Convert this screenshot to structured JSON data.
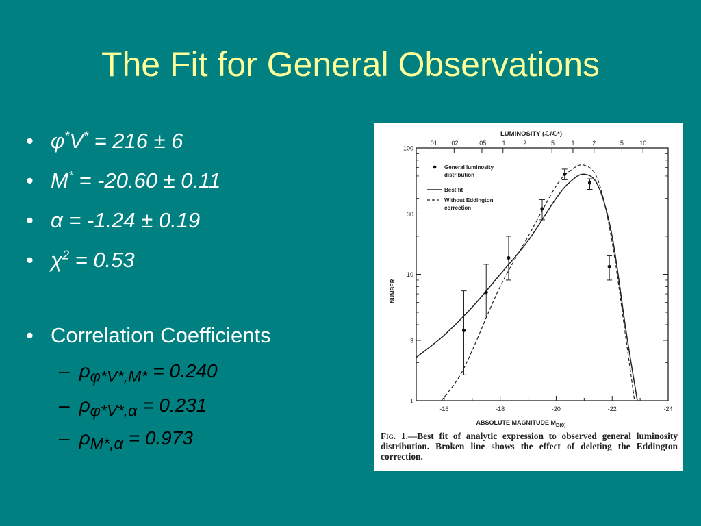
{
  "slide": {
    "title": "The Fit for General Observations"
  },
  "bullets": {
    "b1_base": "φ",
    "b1_sup1": "*",
    "b1_mid": "V",
    "b1_sup2": "*",
    "b1_rest": " = 216 ± 6",
    "b2_base": "M",
    "b2_sup": "*",
    "b2_rest": " = -20.60 ± 0.11",
    "b3": "α = -1.24 ± 0.19",
    "b4_base": "χ",
    "b4_sup": "2",
    "b4_rest": " = 0.53",
    "b5": "Correlation Coefficients",
    "sub": [
      {
        "sym": "ρ",
        "subscript": "φ*V*,M*",
        "value": " = 0.240"
      },
      {
        "sym": "ρ",
        "subscript": "φ*V*,α",
        "value": " = 0.231"
      },
      {
        "sym": "ρ",
        "subscript": "M*,α",
        "value": " = 0.973"
      }
    ],
    "bullet_char": "•",
    "dash_char": "–"
  },
  "figure": {
    "top_axis_label": "LUMINOSITY (ℒ/ℒ*)",
    "top_ticks": [
      ".01",
      ".02",
      ".05",
      ".1",
      ".2",
      ".5",
      "1",
      "2",
      "5",
      "10"
    ],
    "y_label": "NUMBER",
    "y_ticks": [
      "100",
      "30",
      "10",
      "3",
      "1"
    ],
    "x_ticks": [
      "-16",
      "-18",
      "-20",
      "-22",
      "-24"
    ],
    "x_label": "ABSOLUTE MAGNITUDE M",
    "x_label_sub": "B(0)",
    "legend": {
      "points": "General luminosity distribution",
      "points_l1": "General luminosity",
      "points_l2": "distribution",
      "best": "Best fit",
      "dashed_l1": "Without Eddington",
      "dashed_l2": "correction"
    },
    "caption_fig": "Fig. 1.",
    "caption_text": "—Best fit of analytic expression to observed general luminosity distribution. Broken line shows the effect of deleting the Eddington correction."
  },
  "chart_data": {
    "type": "scatter",
    "title": "",
    "xlabel": "ABSOLUTE MAGNITUDE M B(0)",
    "ylabel": "NUMBER",
    "xlim": [
      -15,
      -24
    ],
    "ylim": [
      1,
      100
    ],
    "y_scale": "log",
    "x_ticks": [
      -16,
      -18,
      -20,
      -22,
      -24
    ],
    "y_ticks": [
      1,
      3,
      10,
      30,
      100
    ],
    "top_axis": {
      "label": "LUMINOSITY (ℒ/ℒ*)",
      "ticks": [
        0.01,
        0.02,
        0.05,
        0.1,
        0.2,
        0.5,
        1,
        2,
        5,
        10
      ]
    },
    "series": [
      {
        "name": "General luminosity distribution",
        "kind": "points",
        "x": [
          -16.7,
          -17.5,
          -18.3,
          -19.5,
          -20.3,
          -21.2,
          -21.9
        ],
        "y": [
          3.6,
          7.2,
          13.5,
          33,
          62,
          53,
          11.5
        ],
        "err_low": [
          1.6,
          4.5,
          9,
          27,
          56,
          47,
          9
        ],
        "err_high": [
          7.4,
          12,
          20,
          39,
          68,
          57,
          14
        ]
      },
      {
        "name": "Best fit",
        "kind": "line",
        "x": [
          -15,
          -16,
          -17,
          -18,
          -19,
          -20,
          -20.5,
          -21,
          -21.5,
          -22,
          -22.5,
          -22.9
        ],
        "y": [
          2.2,
          3.3,
          5.5,
          10,
          18.5,
          40,
          54,
          62,
          50,
          20,
          3.5,
          1
        ]
      },
      {
        "name": "Without Eddington correction",
        "kind": "dashed",
        "x": [
          -15.9,
          -16.5,
          -17,
          -18,
          -19,
          -20,
          -20.5,
          -21,
          -21.5,
          -22,
          -22.5,
          -22.8
        ],
        "y": [
          1,
          1.5,
          2.5,
          8,
          20,
          50,
          66,
          73,
          55,
          18,
          3,
          1
        ]
      }
    ],
    "legend_position": "top-left"
  }
}
